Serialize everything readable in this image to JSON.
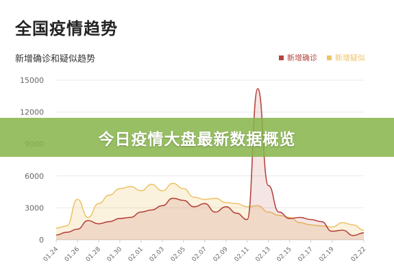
{
  "page": {
    "title": "全国疫情趋势",
    "banner": "今日疫情大盘最新数据概览"
  },
  "colors": {
    "confirmed": "#b5443d",
    "suspected": "#edc46b",
    "grid": "#e9e9e9",
    "axis_text": "#666666"
  },
  "chart_data": {
    "type": "area",
    "title": "新增确诊和疑似趋势",
    "xlabel": "",
    "ylabel": "",
    "ylim": [
      0,
      15000
    ],
    "yticks": [
      0,
      3000,
      6000,
      9000,
      12000,
      15000
    ],
    "grid": true,
    "legend_position": "top-right",
    "x": [
      "01.24",
      "01.25",
      "01.26",
      "01.27",
      "01.28",
      "01.29",
      "01.30",
      "01.31",
      "02.01",
      "02.02",
      "02.03",
      "02.04",
      "02.05",
      "02.06",
      "02.07",
      "02.08",
      "02.09",
      "02.10",
      "02.11",
      "02.12",
      "02.13",
      "02.14",
      "02.15",
      "02.16",
      "02.17",
      "02.18",
      "02.19",
      "02.20",
      "02.21",
      "02.22"
    ],
    "xtick_labels": [
      "01.24",
      "01.26",
      "01.28",
      "01.30",
      "02.01",
      "02.03",
      "02.05",
      "02.07",
      "02.09",
      "02.11",
      "02.13",
      "02.15",
      "02.17",
      "02.19",
      "02.22"
    ],
    "series": [
      {
        "name": "新增确诊",
        "color": "#b5443d",
        "values": [
          450,
          700,
          1000,
          1800,
          1500,
          1700,
          2000,
          2100,
          2600,
          2800,
          3200,
          3900,
          3700,
          3100,
          3400,
          2600,
          3100,
          2500,
          1900,
          14200,
          5100,
          2600,
          2000,
          2100,
          1900,
          1700,
          800,
          900,
          400,
          650
        ]
      },
      {
        "name": "新增疑似",
        "color": "#edc46b",
        "values": [
          1100,
          1300,
          3800,
          2100,
          3400,
          4200,
          4800,
          5000,
          4600,
          5200,
          4600,
          5300,
          4800,
          4000,
          3800,
          3900,
          3500,
          3400,
          3100,
          3200,
          2600,
          2300,
          2100,
          1600,
          1400,
          1300,
          1200,
          1600,
          1400,
          900
        ]
      }
    ]
  }
}
